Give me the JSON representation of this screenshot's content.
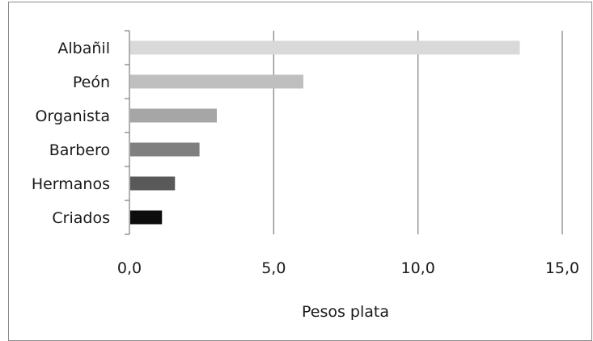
{
  "chart_data": {
    "type": "bar",
    "orientation": "horizontal",
    "categories": [
      "Albañil",
      "Peón",
      "Organista",
      "Barbero",
      "Hermanos",
      "Criados"
    ],
    "values": [
      13.5,
      6.0,
      3.0,
      2.4,
      1.55,
      1.1
    ],
    "bar_colors": [
      "#d9d9d9",
      "#bfbfbf",
      "#a6a6a6",
      "#7f7f7f",
      "#595959",
      "#0d0d0d"
    ],
    "xlim": [
      0,
      15
    ],
    "xticks": [
      "0,0",
      "5,0",
      "10,0",
      "15,0"
    ],
    "xlabel": "Pesos plata",
    "ylabel": "",
    "title": "",
    "grid": "vertical",
    "legend": "none"
  }
}
